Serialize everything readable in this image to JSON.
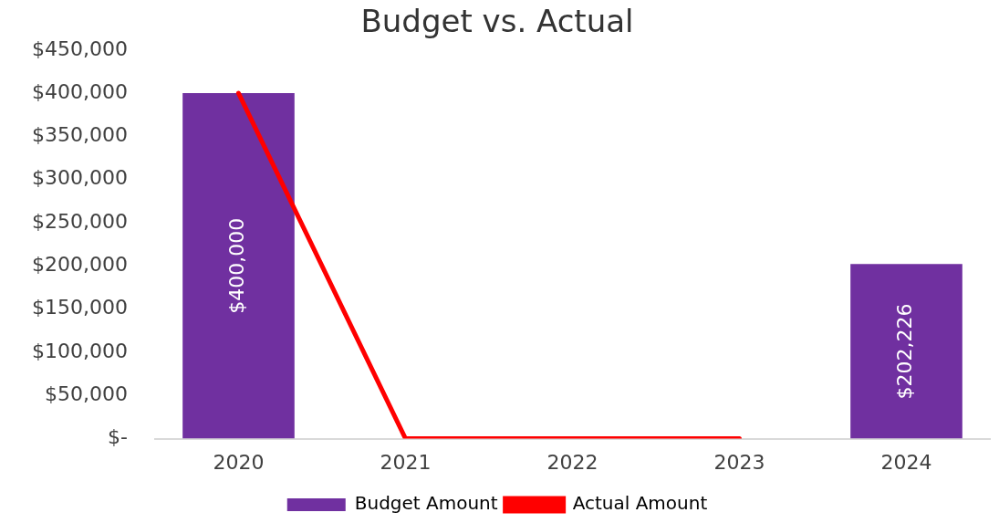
{
  "chart_data": {
    "type": "bar",
    "title": "Budget vs. Actual",
    "categories": [
      "2020",
      "2021",
      "2022",
      "2023",
      "2024"
    ],
    "series": [
      {
        "name": "Budget Amount",
        "color": "#7030a0",
        "values": [
          400000,
          null,
          null,
          null,
          202226
        ],
        "value_labels": [
          "$400,000",
          null,
          null,
          null,
          "$202,226"
        ]
      },
      {
        "name": "Actual Amount",
        "type": "line",
        "color": "#ff0000",
        "values": [
          400000,
          0,
          0,
          0,
          null
        ]
      }
    ],
    "ylim": [
      0,
      450000
    ],
    "yticks": [
      {
        "value": 0,
        "label": "$-"
      },
      {
        "value": 50000,
        "label": "$50,000"
      },
      {
        "value": 100000,
        "label": "$100,000"
      },
      {
        "value": 150000,
        "label": "$150,000"
      },
      {
        "value": 200000,
        "label": "$200,000"
      },
      {
        "value": 250000,
        "label": "$250,000"
      },
      {
        "value": 300000,
        "label": "$300,000"
      },
      {
        "value": 350000,
        "label": "$350,000"
      },
      {
        "value": 400000,
        "label": "$400,000"
      },
      {
        "value": 450000,
        "label": "$450,000"
      }
    ],
    "grid": false,
    "legend": "bottom",
    "marker": "none",
    "line_style": "solid"
  }
}
